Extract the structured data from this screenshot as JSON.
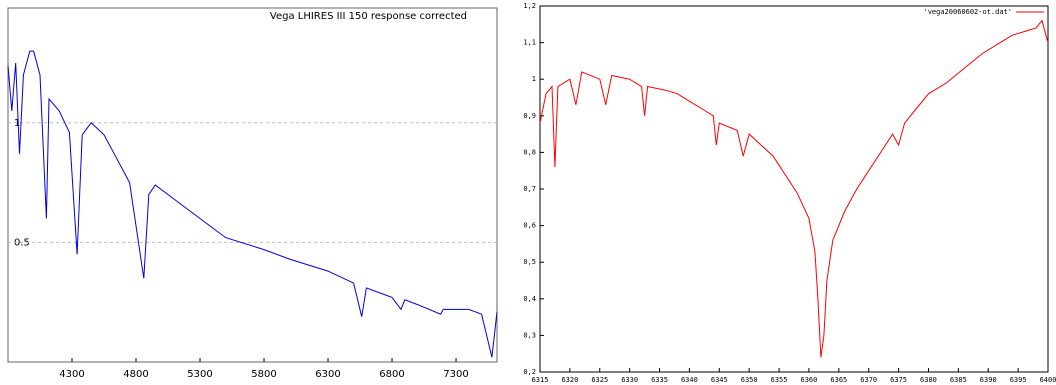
{
  "chart_data": [
    {
      "type": "line",
      "title": "Vega LHIRES III 150  response corrected",
      "series": [
        {
          "color": "#0000dd",
          "x": [
            3800,
            3830,
            3860,
            3890,
            3920,
            3970,
            4000,
            4050,
            4100,
            4120,
            4200,
            4280,
            4340,
            4380,
            4450,
            4550,
            4650,
            4750,
            4861,
            4900,
            4950,
            5100,
            5300,
            5500,
            5800,
            6000,
            6300,
            6500,
            6563,
            6600,
            6800,
            6870,
            6900,
            7000,
            7180,
            7200,
            7400,
            7500,
            7580,
            7620
          ],
          "values": [
            1.24,
            1.05,
            1.25,
            0.87,
            1.2,
            1.3,
            1.3,
            1.2,
            0.6,
            1.1,
            1.05,
            0.96,
            0.45,
            0.95,
            1.0,
            0.95,
            0.85,
            0.75,
            0.35,
            0.7,
            0.74,
            0.68,
            0.6,
            0.52,
            0.47,
            0.43,
            0.38,
            0.33,
            0.19,
            0.31,
            0.27,
            0.22,
            0.26,
            0.24,
            0.2,
            0.22,
            0.22,
            0.2,
            0.02,
            0.21
          ]
        }
      ],
      "xlim": [
        3800,
        7620
      ],
      "xticks": [
        4300,
        4800,
        5300,
        5800,
        6300,
        6800,
        7300
      ],
      "ylim": [
        0,
        1.48
      ],
      "yticks": [
        0.5,
        1
      ],
      "grid": true
    },
    {
      "type": "line",
      "series": [
        {
          "name": "'vega20060602-ot.dat'",
          "color": "#ff0000",
          "x": [
            6315,
            6316,
            6317,
            6317.5,
            6318,
            6320,
            6321,
            6322,
            6325,
            6326,
            6327,
            6330,
            6332,
            6332.5,
            6333,
            6336,
            6338,
            6340,
            6342,
            6344,
            6344.5,
            6345,
            6348,
            6349,
            6350,
            6352,
            6354,
            6356,
            6358,
            6360,
            6361,
            6361.5,
            6362,
            6362.5,
            6363,
            6364,
            6366,
            6368,
            6370,
            6372,
            6374,
            6375,
            6376,
            6378,
            6380,
            6383,
            6386,
            6389,
            6392,
            6394,
            6396,
            6398,
            6399,
            6400
          ],
          "values": [
            0.88,
            0.96,
            0.98,
            0.76,
            0.98,
            1.0,
            0.93,
            1.02,
            1.0,
            0.93,
            1.01,
            1.0,
            0.98,
            0.9,
            0.98,
            0.97,
            0.96,
            0.94,
            0.92,
            0.9,
            0.82,
            0.88,
            0.86,
            0.79,
            0.85,
            0.82,
            0.79,
            0.74,
            0.69,
            0.62,
            0.53,
            0.4,
            0.24,
            0.3,
            0.45,
            0.56,
            0.64,
            0.7,
            0.75,
            0.8,
            0.85,
            0.82,
            0.88,
            0.92,
            0.96,
            0.99,
            1.03,
            1.07,
            1.1,
            1.12,
            1.13,
            1.14,
            1.16,
            1.1
          ]
        }
      ],
      "xlim": [
        6315,
        6400
      ],
      "xticks": [
        6315,
        6320,
        6325,
        6330,
        6335,
        6340,
        6345,
        6350,
        6355,
        6360,
        6365,
        6370,
        6375,
        6380,
        6385,
        6390,
        6395,
        6400
      ],
      "ylim": [
        0.2,
        1.2
      ],
      "yticks": [
        {
          "value": 0.2,
          "label": "0,2"
        },
        {
          "value": 0.3,
          "label": "0,3"
        },
        {
          "value": 0.4,
          "label": "0,4"
        },
        {
          "value": 0.5,
          "label": "0,5"
        },
        {
          "value": 0.6,
          "label": "0,6"
        },
        {
          "value": 0.7,
          "label": "0,7"
        },
        {
          "value": 0.8,
          "label": "0,8"
        },
        {
          "value": 0.9,
          "label": "0,9"
        },
        1,
        {
          "value": 1.1,
          "label": "1,1"
        },
        {
          "value": 1.2,
          "label": "1,2"
        }
      ],
      "grid": false,
      "legend": "top-right"
    }
  ]
}
